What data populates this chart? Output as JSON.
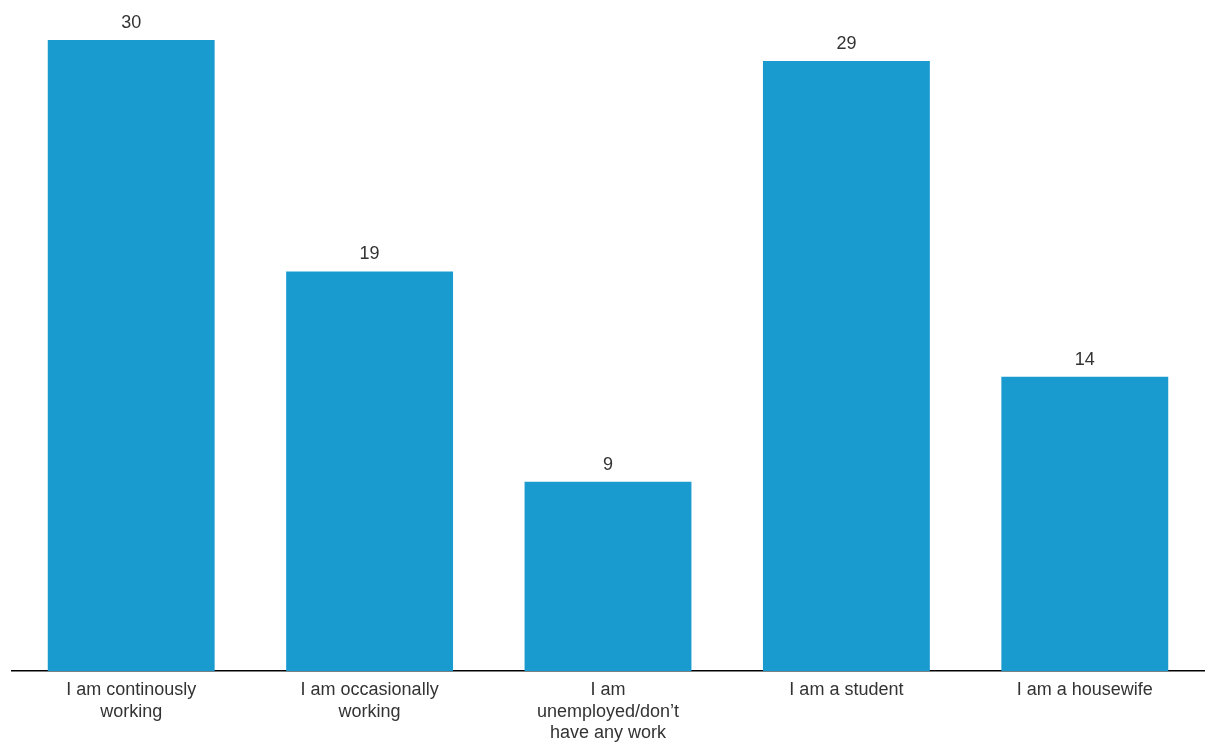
{
  "chart_data": {
    "type": "bar",
    "categories": [
      "I am continously working",
      "I am occasionally working",
      "I am unemployed/don’t have any work",
      "I am a student",
      "I am a housewife"
    ],
    "values": [
      30,
      19,
      9,
      29,
      14
    ],
    "color": "#1a9bd0",
    "data_labels": true,
    "grid": false,
    "legend": false
  }
}
